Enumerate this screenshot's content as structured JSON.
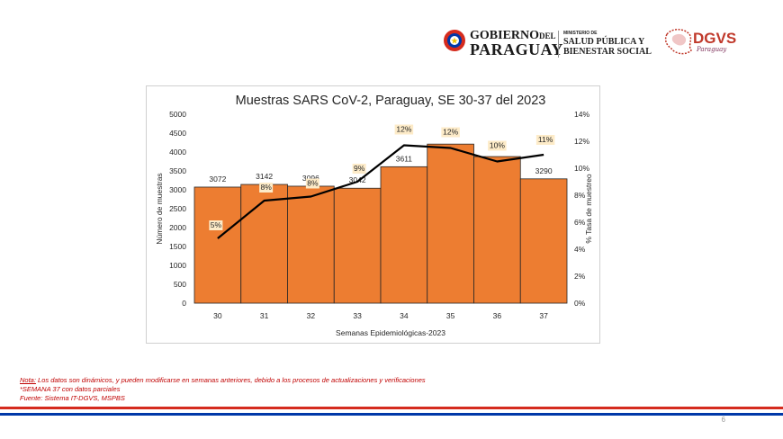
{
  "header": {
    "gov_line1_main": "GOBIERNO",
    "gov_line1_small": "DEL",
    "gov_line2": "PARAGUAY",
    "ministry_line1": "MINISTERIO DE",
    "ministry_line2": "SALUD PÚBLICA Y",
    "ministry_line3": "BIENESTAR SOCIAL",
    "dgvs_word": "DGVS",
    "dgvs_sub": "Paraguay"
  },
  "chart_data": {
    "type": "bar",
    "title": "Muestras SARS CoV-2, Paraguay, SE 30-37 del 2023",
    "xlabel": "Semanas Epidemiológicas-2023",
    "ylabel": "Número de muestras",
    "y2label": "% Tasa de muestreo",
    "categories": [
      "30",
      "31",
      "32",
      "33",
      "34",
      "35",
      "36",
      "37"
    ],
    "ylim": [
      0,
      5000
    ],
    "yticks": [
      0,
      500,
      1000,
      1500,
      2000,
      2500,
      3000,
      3500,
      4000,
      4500,
      5000
    ],
    "y2lim": [
      0,
      14
    ],
    "y2ticks": [
      "0%",
      "2%",
      "4%",
      "6%",
      "8%",
      "10%",
      "12%",
      "14%"
    ],
    "series": [
      {
        "name": "Número de muestras",
        "kind": "bar",
        "color": "#ed7d31",
        "values": [
          3072,
          3142,
          3096,
          3042,
          3611,
          4210,
          3880,
          3290
        ],
        "labels": [
          "3072",
          "3142",
          "3096",
          "3042",
          "3611",
          "",
          "",
          "3290"
        ]
      },
      {
        "name": "% Tasa de muestreo",
        "kind": "line",
        "axis": "secondary",
        "color": "#000000",
        "values": [
          4.8,
          7.6,
          7.9,
          9.0,
          11.7,
          11.5,
          10.5,
          11.0
        ],
        "labels": [
          "5%",
          "8%",
          "8%",
          "9%",
          "12%",
          "12%",
          "10%",
          "11%"
        ]
      }
    ]
  },
  "footer": {
    "note_label": "Nota:",
    "note_text": " Los datos son dinámicos, y pueden modificarse en semanas anteriores, debido a los procesos de actualizaciones y verificaciones",
    "line2": "*SEMANA 37 con datos parciales",
    "line3": "Fuente: Sistema IT-DGVS, MSPBS",
    "page_number": "6"
  }
}
